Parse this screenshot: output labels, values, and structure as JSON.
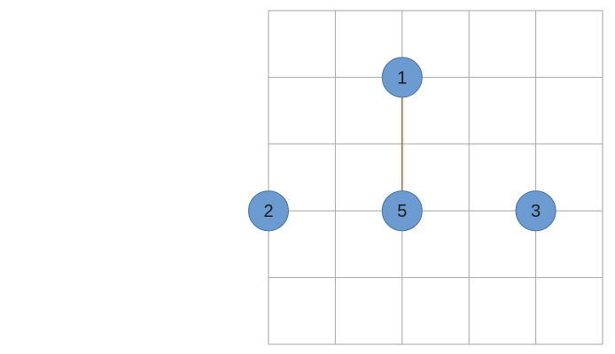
{
  "grid": {
    "columns": 5,
    "rows": 5,
    "line_color": "#a6a6a6"
  },
  "nodes": [
    {
      "label": "1",
      "col": 2,
      "row": 1
    },
    {
      "label": "2",
      "col": 0,
      "row": 3
    },
    {
      "label": "5",
      "col": 2,
      "row": 3
    },
    {
      "label": "3",
      "col": 4,
      "row": 3
    }
  ],
  "node_style": {
    "fill": "#6b9bd1",
    "stroke": "#4a74a8"
  },
  "edges": [
    {
      "from": "1",
      "to": "5",
      "color": "#d9533b"
    }
  ]
}
